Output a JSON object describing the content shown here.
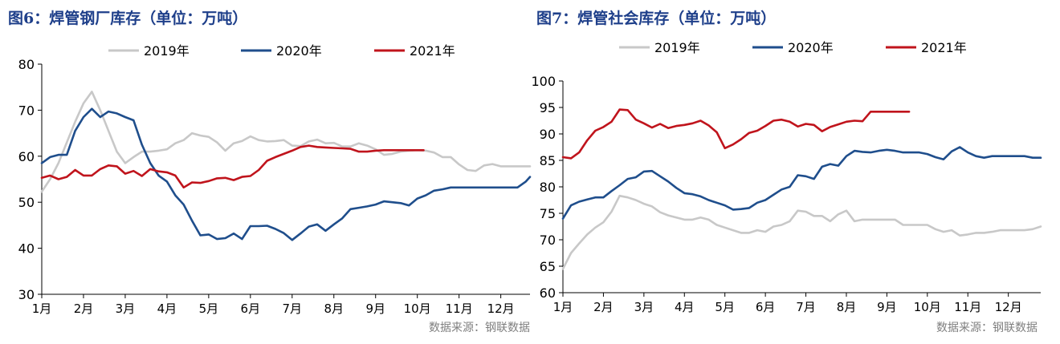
{
  "chart_data": [
    {
      "type": "line",
      "title": "图6：焊管钢厂库存（单位：万吨）",
      "source": "数据来源：钢联数据",
      "xlabel": "",
      "ylabel": "",
      "ylim": [
        30,
        80
      ],
      "yticks": [
        30,
        40,
        50,
        60,
        70,
        80
      ],
      "xlim": [
        1,
        12.7
      ],
      "xticks": [
        {
          "x": 1,
          "label": "1月"
        },
        {
          "x": 2,
          "label": "2月"
        },
        {
          "x": 3,
          "label": "3月"
        },
        {
          "x": 4,
          "label": "4月"
        },
        {
          "x": 5,
          "label": "5月"
        },
        {
          "x": 6,
          "label": "6月"
        },
        {
          "x": 7,
          "label": "7月"
        },
        {
          "x": 8,
          "label": "8月"
        },
        {
          "x": 9,
          "label": "9月"
        },
        {
          "x": 10,
          "label": "10月"
        },
        {
          "x": 11,
          "label": "11月"
        },
        {
          "x": 12,
          "label": "12月"
        }
      ],
      "legend_position": "top",
      "series": [
        {
          "name": "2019年",
          "color": "#c8c8c8",
          "x": [
            1.0,
            1.2,
            1.4,
            1.6,
            1.8,
            2.0,
            2.2,
            2.4,
            2.6,
            2.8,
            3.0,
            3.2,
            3.4,
            3.6,
            3.8,
            4.0,
            4.2,
            4.4,
            4.6,
            4.8,
            5.0,
            5.2,
            5.4,
            5.6,
            5.8,
            6.0,
            6.2,
            6.4,
            6.6,
            6.8,
            7.0,
            7.2,
            7.4,
            7.6,
            7.8,
            8.0,
            8.2,
            8.4,
            8.6,
            8.8,
            9.0,
            9.2,
            9.4,
            9.6,
            9.8,
            10.0,
            10.2,
            10.4,
            10.6,
            10.8,
            11.0,
            11.2,
            11.4,
            11.6,
            11.8,
            12.0,
            12.2,
            12.4,
            12.6,
            12.7
          ],
          "y": [
            52.3,
            55.0,
            58.5,
            63.0,
            67.5,
            71.5,
            74.0,
            70.0,
            65.5,
            61.0,
            58.5,
            59.8,
            61.0,
            61.0,
            61.2,
            61.5,
            62.8,
            63.5,
            65.0,
            64.5,
            64.2,
            63.0,
            61.2,
            62.8,
            63.3,
            64.3,
            63.5,
            63.2,
            63.3,
            63.5,
            62.3,
            62.2,
            63.2,
            63.6,
            62.8,
            62.9,
            62.1,
            62.1,
            62.8,
            62.3,
            61.5,
            60.3,
            60.5,
            61.0,
            61.2,
            61.3,
            61.2,
            60.8,
            59.8,
            59.8,
            58.2,
            57.0,
            56.8,
            58.0,
            58.3,
            57.8,
            57.8,
            57.8,
            57.8,
            57.8
          ]
        },
        {
          "name": "2020年",
          "color": "#1f4e8c",
          "x": [
            1.0,
            1.2,
            1.4,
            1.6,
            1.8,
            2.0,
            2.2,
            2.4,
            2.6,
            2.8,
            3.0,
            3.2,
            3.4,
            3.6,
            3.8,
            4.0,
            4.2,
            4.4,
            4.6,
            4.8,
            5.0,
            5.2,
            5.4,
            5.6,
            5.8,
            6.0,
            6.2,
            6.4,
            6.6,
            6.8,
            7.0,
            7.2,
            7.4,
            7.6,
            7.8,
            8.0,
            8.2,
            8.4,
            8.6,
            8.8,
            9.0,
            9.2,
            9.4,
            9.6,
            9.8,
            10.0,
            10.2,
            10.4,
            10.6,
            10.8,
            11.0,
            11.2,
            11.4,
            11.6,
            11.8,
            12.0,
            12.2,
            12.4,
            12.6,
            12.7
          ],
          "y": [
            58.5,
            59.8,
            60.3,
            60.3,
            65.5,
            68.5,
            70.3,
            68.5,
            69.7,
            69.3,
            68.5,
            67.8,
            62.5,
            58.5,
            55.8,
            54.5,
            51.5,
            49.5,
            46.0,
            42.8,
            43.0,
            42.0,
            42.2,
            43.2,
            42.0,
            44.8,
            44.8,
            44.9,
            44.2,
            43.3,
            41.8,
            43.2,
            44.7,
            45.2,
            43.8,
            45.2,
            46.5,
            48.5,
            48.8,
            49.1,
            49.5,
            50.2,
            50.0,
            49.8,
            49.3,
            50.8,
            51.5,
            52.5,
            52.8,
            53.2,
            53.2,
            53.2,
            53.2,
            53.2,
            53.2,
            53.2,
            53.2,
            53.2,
            54.5,
            55.5
          ]
        },
        {
          "name": "2021年",
          "color": "#c0141c",
          "x": [
            1.0,
            1.2,
            1.4,
            1.6,
            1.8,
            2.0,
            2.2,
            2.4,
            2.6,
            2.8,
            3.0,
            3.2,
            3.4,
            3.6,
            3.8,
            4.0,
            4.2,
            4.4,
            4.6,
            4.8,
            5.0,
            5.2,
            5.4,
            5.6,
            5.8,
            6.0,
            6.2,
            6.4,
            6.6,
            6.8,
            7.0,
            7.2,
            7.4,
            7.6,
            7.8,
            8.0,
            8.2,
            8.4,
            8.6,
            8.8,
            9.0,
            9.2,
            9.4,
            9.6,
            9.8,
            10.0,
            10.15
          ],
          "y": [
            55.3,
            55.8,
            55.0,
            55.5,
            57.0,
            55.8,
            55.8,
            57.2,
            58.0,
            57.8,
            56.2,
            56.8,
            55.7,
            57.2,
            56.7,
            56.5,
            55.8,
            53.2,
            54.3,
            54.2,
            54.6,
            55.2,
            55.3,
            54.8,
            55.5,
            55.7,
            57.0,
            59.0,
            59.8,
            60.5,
            61.2,
            62.0,
            62.3,
            62.0,
            61.9,
            61.8,
            61.7,
            61.6,
            61.0,
            61.0,
            61.2,
            61.3,
            61.3,
            61.3,
            61.3,
            61.3,
            61.3
          ]
        }
      ]
    },
    {
      "type": "line",
      "title": "图7：焊管社会库存（单位：万吨）",
      "source": "数据来源：钢联数据",
      "xlabel": "",
      "ylabel": "",
      "ylim": [
        60,
        100
      ],
      "yticks": [
        60,
        65,
        70,
        75,
        80,
        85,
        90,
        95,
        100
      ],
      "xlim": [
        1,
        12.8
      ],
      "xticks": [
        {
          "x": 1,
          "label": "1月"
        },
        {
          "x": 2,
          "label": "2月"
        },
        {
          "x": 3,
          "label": "3月"
        },
        {
          "x": 4,
          "label": "4月"
        },
        {
          "x": 5,
          "label": "5月"
        },
        {
          "x": 6,
          "label": "6月"
        },
        {
          "x": 7,
          "label": "7月"
        },
        {
          "x": 8,
          "label": "8月"
        },
        {
          "x": 9,
          "label": "9月"
        },
        {
          "x": 10,
          "label": "10月"
        },
        {
          "x": 11,
          "label": "11月"
        },
        {
          "x": 12,
          "label": "12月"
        }
      ],
      "legend_position": "top",
      "series": [
        {
          "name": "2019年",
          "color": "#c8c8c8",
          "x": [
            1.0,
            1.2,
            1.4,
            1.6,
            1.8,
            2.0,
            2.2,
            2.4,
            2.6,
            2.8,
            3.0,
            3.2,
            3.4,
            3.6,
            3.8,
            4.0,
            4.2,
            4.4,
            4.6,
            4.8,
            5.0,
            5.2,
            5.4,
            5.6,
            5.8,
            6.0,
            6.2,
            6.4,
            6.6,
            6.8,
            7.0,
            7.2,
            7.4,
            7.6,
            7.8,
            8.0,
            8.2,
            8.4,
            8.6,
            8.8,
            9.0,
            9.2,
            9.4,
            9.6,
            9.8,
            10.0,
            10.2,
            10.4,
            10.6,
            10.8,
            11.0,
            11.2,
            11.4,
            11.6,
            11.8,
            12.0,
            12.2,
            12.4,
            12.6,
            12.8
          ],
          "y": [
            64.5,
            67.5,
            69.3,
            71.0,
            72.3,
            73.3,
            75.3,
            78.3,
            78.0,
            77.5,
            76.8,
            76.3,
            75.2,
            74.6,
            74.2,
            73.8,
            73.8,
            74.2,
            73.8,
            72.8,
            72.3,
            71.8,
            71.3,
            71.3,
            71.8,
            71.5,
            72.5,
            72.8,
            73.5,
            75.5,
            75.3,
            74.5,
            74.5,
            73.5,
            74.8,
            75.5,
            73.5,
            73.8,
            73.8,
            73.8,
            73.8,
            73.8,
            72.8,
            72.8,
            72.8,
            72.8,
            72.0,
            71.5,
            71.8,
            70.8,
            71.0,
            71.3,
            71.3,
            71.5,
            71.8,
            71.8,
            71.8,
            71.8,
            72.0,
            72.5
          ]
        },
        {
          "name": "2020年",
          "color": "#1f4e8c",
          "x": [
            1.0,
            1.2,
            1.4,
            1.6,
            1.8,
            2.0,
            2.2,
            2.4,
            2.6,
            2.8,
            3.0,
            3.2,
            3.4,
            3.6,
            3.8,
            4.0,
            4.2,
            4.4,
            4.6,
            4.8,
            5.0,
            5.2,
            5.4,
            5.6,
            5.8,
            6.0,
            6.2,
            6.4,
            6.6,
            6.8,
            7.0,
            7.2,
            7.4,
            7.6,
            7.8,
            8.0,
            8.2,
            8.4,
            8.6,
            8.8,
            9.0,
            9.2,
            9.4,
            9.6,
            9.8,
            10.0,
            10.2,
            10.4,
            10.6,
            10.8,
            11.0,
            11.2,
            11.4,
            11.6,
            11.8,
            12.0,
            12.2,
            12.4,
            12.6,
            12.8
          ],
          "y": [
            74.0,
            76.5,
            77.2,
            77.6,
            78.0,
            78.0,
            79.2,
            80.3,
            81.5,
            81.8,
            82.9,
            83.0,
            82.0,
            81.0,
            79.8,
            78.8,
            78.6,
            78.2,
            77.5,
            77.0,
            76.5,
            75.7,
            75.8,
            76.0,
            77.0,
            77.5,
            78.5,
            79.5,
            80.0,
            82.2,
            82.0,
            81.5,
            83.8,
            84.3,
            84.0,
            85.8,
            86.8,
            86.6,
            86.5,
            86.8,
            87.0,
            86.8,
            86.5,
            86.5,
            86.5,
            86.2,
            85.6,
            85.2,
            86.7,
            87.5,
            86.5,
            85.8,
            85.5,
            85.8,
            85.8,
            85.8,
            85.8,
            85.8,
            85.5,
            85.5
          ]
        },
        {
          "name": "2021年",
          "color": "#c0141c",
          "x": [
            1.0,
            1.2,
            1.4,
            1.6,
            1.8,
            2.0,
            2.2,
            2.4,
            2.6,
            2.8,
            3.0,
            3.2,
            3.4,
            3.6,
            3.8,
            4.0,
            4.2,
            4.4,
            4.6,
            4.8,
            5.0,
            5.2,
            5.4,
            5.6,
            5.8,
            6.0,
            6.2,
            6.4,
            6.6,
            6.8,
            7.0,
            7.2,
            7.4,
            7.6,
            7.8,
            8.0,
            8.2,
            8.4,
            8.6,
            8.8,
            9.0,
            9.2,
            9.4,
            9.55
          ],
          "y": [
            85.6,
            85.4,
            86.5,
            88.8,
            90.6,
            91.3,
            92.3,
            94.6,
            94.5,
            92.7,
            92.0,
            91.2,
            91.9,
            91.1,
            91.5,
            91.7,
            92.0,
            92.5,
            91.6,
            90.3,
            87.3,
            88.0,
            89.0,
            90.2,
            90.6,
            91.5,
            92.5,
            92.7,
            92.3,
            91.4,
            91.9,
            91.7,
            90.5,
            91.3,
            91.8,
            92.3,
            92.5,
            92.4,
            94.2,
            94.2,
            94.2,
            94.2,
            94.2,
            94.2
          ]
        }
      ]
    }
  ]
}
